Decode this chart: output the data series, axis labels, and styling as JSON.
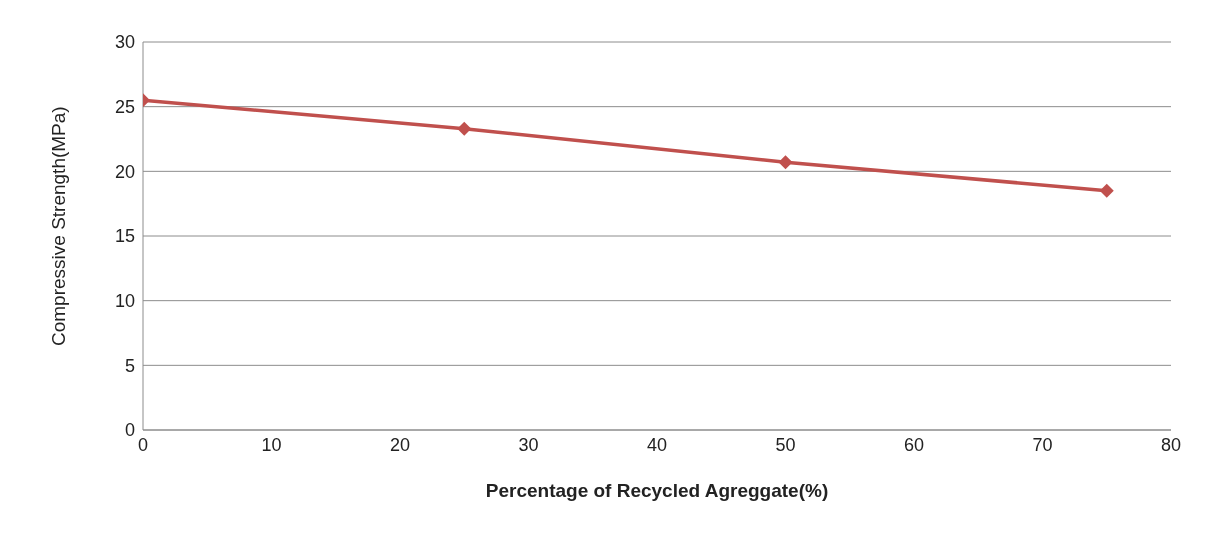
{
  "chart_data": {
    "type": "line",
    "xlabel": "Percentage of Recycled Agreggate(%)",
    "ylabel": "Compressive Strength(MPa)",
    "x": [
      0,
      25,
      50,
      75
    ],
    "series": [
      {
        "color": "#c0504d",
        "values": [
          25.5,
          23.3,
          20.7,
          18.5
        ]
      }
    ],
    "xlim": [
      0,
      80
    ],
    "xticks": [
      0,
      10,
      20,
      30,
      40,
      50,
      60,
      70,
      80
    ],
    "ylim": [
      0,
      30
    ],
    "yticks": [
      0,
      5,
      10,
      15,
      20,
      25,
      30
    ],
    "grid": "y",
    "marker": "diamond",
    "line_style": "solid"
  }
}
